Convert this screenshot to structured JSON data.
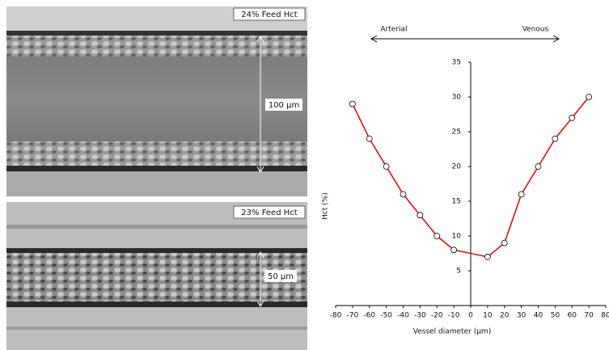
{
  "images": [
    {
      "label": "24% Feed Hct",
      "scale": "100 µm"
    },
    {
      "label": "23% Feed Hct",
      "scale": "50 µm"
    }
  ],
  "chart_data": {
    "type": "line",
    "annotations": {
      "left": "Arterial",
      "right": "Venous"
    },
    "xlabel": "Vessel diameter (µm)",
    "ylabel": "Hct (%)",
    "x": [
      -70,
      -60,
      -50,
      -40,
      -30,
      -20,
      -10,
      10,
      20,
      30,
      40,
      50,
      60,
      70
    ],
    "series": [
      {
        "color": "#e00000",
        "values": [
          29,
          24,
          20,
          16,
          13,
          10,
          8,
          7,
          9,
          16,
          20,
          24,
          27,
          30
        ]
      }
    ],
    "xlim": [
      -80,
      80
    ],
    "xticks": [
      -80,
      -70,
      -60,
      -50,
      -40,
      -30,
      -20,
      -10,
      0,
      10,
      20,
      30,
      40,
      50,
      60,
      70,
      80
    ],
    "ylim": [
      0,
      35
    ],
    "yticks": [
      5,
      10,
      15,
      20,
      25,
      30,
      35
    ],
    "grid": false
  }
}
